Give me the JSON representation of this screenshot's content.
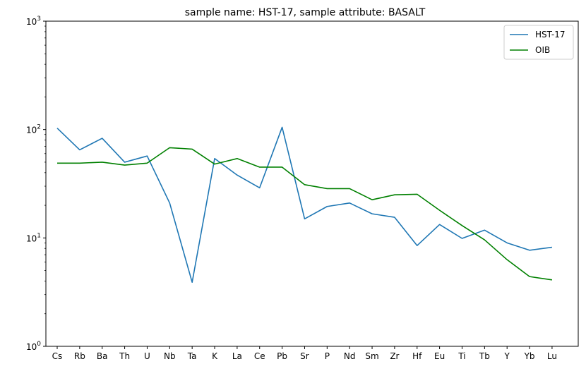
{
  "chart_data": {
    "type": "line",
    "title": "sample name: HST-17, sample attribute: BASALT",
    "xlabel": "",
    "ylabel": "",
    "yscale": "log",
    "ylim": [
      1,
      1000
    ],
    "y_ticks": [
      {
        "value": 1,
        "base": "10",
        "exp": "0"
      },
      {
        "value": 10,
        "base": "10",
        "exp": "1"
      },
      {
        "value": 100,
        "base": "10",
        "exp": "2"
      },
      {
        "value": 1000,
        "base": "10",
        "exp": "3"
      }
    ],
    "categories": [
      "Cs",
      "Rb",
      "Ba",
      "Th",
      "U",
      "Nb",
      "Ta",
      "K",
      "La",
      "Ce",
      "Pb",
      "Sr",
      "P",
      "Nd",
      "Sm",
      "Zr",
      "Hf",
      "Eu",
      "Ti",
      "Tb",
      "Y",
      "Yb",
      "Lu"
    ],
    "series": [
      {
        "name": "HST-17",
        "color": "#1f77b4",
        "values": [
          103,
          65,
          83,
          50,
          57,
          21,
          3.9,
          54,
          38,
          29,
          105,
          15,
          19.5,
          21,
          16.7,
          15.5,
          8.5,
          13.3,
          9.9,
          11.8,
          9,
          7.7,
          8.2
        ]
      },
      {
        "name": "OIB",
        "color": "#008000",
        "values": [
          49,
          49,
          50,
          47,
          49,
          68,
          66,
          48,
          54,
          45,
          45,
          31,
          28.5,
          28.5,
          22.5,
          25,
          25.3,
          18,
          13,
          9.6,
          6.3,
          4.4,
          4.1
        ]
      }
    ],
    "legend_position": "top-right",
    "grid": false
  }
}
